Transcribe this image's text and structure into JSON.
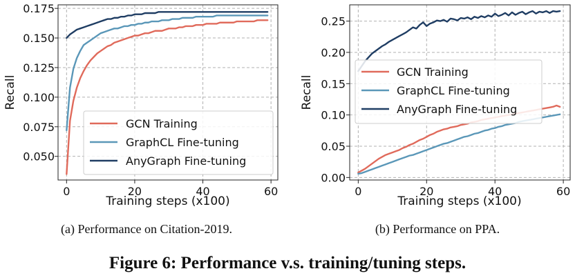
{
  "figure": {
    "caption": "Figure 6: Performance v.s. training/tuning steps.",
    "colors": {
      "gcn": "#e06a5b",
      "graphcl": "#5a97b8",
      "anygraph": "#1f3d63"
    }
  },
  "chart_data": [
    {
      "type": "line",
      "subcaption": "(a)  Performance on Citation-2019.",
      "xlabel": "Training steps (x100)",
      "ylabel": "Recall",
      "xlim": [
        -2.5,
        62
      ],
      "ylim": [
        0.03,
        0.178
      ],
      "xticks": [
        0,
        20,
        40,
        60
      ],
      "xtick_labels": [
        "0",
        "20",
        "40",
        "60"
      ],
      "yticks": [
        0.05,
        0.075,
        0.1,
        0.125,
        0.15,
        0.175
      ],
      "ytick_labels": [
        "0.050",
        "0.075",
        "0.100",
        "0.125",
        "0.150",
        "0.175"
      ],
      "grid": true,
      "legend_position": "lower-right",
      "x": [
        0,
        1,
        2,
        3,
        4,
        5,
        6,
        7,
        8,
        9,
        10,
        11,
        12,
        13,
        14,
        15,
        16,
        17,
        18,
        19,
        20,
        21,
        22,
        23,
        24,
        25,
        26,
        27,
        28,
        29,
        30,
        31,
        32,
        33,
        34,
        35,
        36,
        37,
        38,
        39,
        40,
        41,
        42,
        43,
        44,
        45,
        46,
        47,
        48,
        49,
        50,
        51,
        52,
        53,
        54,
        55,
        56,
        57,
        58,
        59
      ],
      "series": [
        {
          "name": "GCN Training",
          "key": "gcn",
          "values": [
            0.035,
            0.08,
            0.097,
            0.108,
            0.116,
            0.122,
            0.127,
            0.131,
            0.134,
            0.137,
            0.139,
            0.141,
            0.143,
            0.144,
            0.146,
            0.147,
            0.148,
            0.149,
            0.15,
            0.151,
            0.152,
            0.152,
            0.153,
            0.154,
            0.154,
            0.155,
            0.156,
            0.156,
            0.156,
            0.157,
            0.158,
            0.158,
            0.158,
            0.159,
            0.159,
            0.16,
            0.16,
            0.16,
            0.161,
            0.161,
            0.161,
            0.162,
            0.162,
            0.162,
            0.162,
            0.163,
            0.163,
            0.163,
            0.163,
            0.163,
            0.164,
            0.164,
            0.164,
            0.164,
            0.164,
            0.164,
            0.165,
            0.165,
            0.165,
            0.165
          ]
        },
        {
          "name": "GraphCL Fine-tuning",
          "key": "graphcl",
          "values": [
            0.072,
            0.108,
            0.124,
            0.133,
            0.139,
            0.144,
            0.146,
            0.148,
            0.15,
            0.152,
            0.154,
            0.155,
            0.156,
            0.157,
            0.158,
            0.158,
            0.159,
            0.16,
            0.16,
            0.161,
            0.161,
            0.162,
            0.162,
            0.163,
            0.163,
            0.164,
            0.164,
            0.164,
            0.165,
            0.165,
            0.165,
            0.166,
            0.166,
            0.166,
            0.167,
            0.167,
            0.167,
            0.167,
            0.168,
            0.168,
            0.168,
            0.168,
            0.168,
            0.168,
            0.169,
            0.169,
            0.169,
            0.169,
            0.169,
            0.169,
            0.169,
            0.169,
            0.169,
            0.169,
            0.169,
            0.169,
            0.169,
            0.169,
            0.169,
            0.169
          ]
        },
        {
          "name": "AnyGraph Fine-tuning",
          "key": "anygraph",
          "values": [
            0.15,
            0.153,
            0.155,
            0.157,
            0.158,
            0.159,
            0.16,
            0.161,
            0.162,
            0.163,
            0.164,
            0.165,
            0.166,
            0.166,
            0.167,
            0.167,
            0.168,
            0.168,
            0.169,
            0.169,
            0.17,
            0.17,
            0.17,
            0.171,
            0.171,
            0.171,
            0.171,
            0.172,
            0.172,
            0.172,
            0.172,
            0.172,
            0.172,
            0.172,
            0.172,
            0.172,
            0.172,
            0.172,
            0.172,
            0.172,
            0.172,
            0.172,
            0.172,
            0.172,
            0.172,
            0.172,
            0.172,
            0.172,
            0.172,
            0.172,
            0.172,
            0.172,
            0.172,
            0.172,
            0.172,
            0.172,
            0.172,
            0.172,
            0.172,
            0.172
          ]
        }
      ]
    },
    {
      "type": "line",
      "subcaption": "(b)  Performance on PPA.",
      "xlabel": "Training steps (x100)",
      "ylabel": "Recall",
      "xlim": [
        -2.5,
        62
      ],
      "ylim": [
        -0.004,
        0.276
      ],
      "xticks": [
        0,
        20,
        40,
        60
      ],
      "xtick_labels": [
        "0",
        "20",
        "40",
        "60"
      ],
      "yticks": [
        0,
        0.05,
        0.1,
        0.15,
        0.2,
        0.25
      ],
      "ytick_labels": [
        "0.00",
        "0.05",
        "0.10",
        "0.15",
        "0.20",
        "0.25"
      ],
      "grid": true,
      "legend_position": "center",
      "x": [
        0,
        1,
        2,
        3,
        4,
        5,
        6,
        7,
        8,
        9,
        10,
        11,
        12,
        13,
        14,
        15,
        16,
        17,
        18,
        19,
        20,
        21,
        22,
        23,
        24,
        25,
        26,
        27,
        28,
        29,
        30,
        31,
        32,
        33,
        34,
        35,
        36,
        37,
        38,
        39,
        40,
        41,
        42,
        43,
        44,
        45,
        46,
        47,
        48,
        49,
        50,
        51,
        52,
        53,
        54,
        55,
        56,
        57,
        58,
        59
      ],
      "series": [
        {
          "name": "GCN Training",
          "key": "gcn",
          "values": [
            0.008,
            0.011,
            0.014,
            0.018,
            0.022,
            0.026,
            0.03,
            0.033,
            0.036,
            0.038,
            0.04,
            0.042,
            0.044,
            0.047,
            0.049,
            0.052,
            0.054,
            0.057,
            0.06,
            0.062,
            0.065,
            0.068,
            0.07,
            0.073,
            0.075,
            0.077,
            0.078,
            0.08,
            0.081,
            0.082,
            0.084,
            0.085,
            0.086,
            0.088,
            0.089,
            0.09,
            0.092,
            0.093,
            0.094,
            0.095,
            0.096,
            0.097,
            0.098,
            0.099,
            0.1,
            0.101,
            0.102,
            0.103,
            0.104,
            0.105,
            0.106,
            0.107,
            0.108,
            0.109,
            0.11,
            0.111,
            0.112,
            0.113,
            0.115,
            0.113
          ]
        },
        {
          "name": "GraphCL Fine-tuning",
          "key": "graphcl",
          "values": [
            0.006,
            0.007,
            0.009,
            0.011,
            0.013,
            0.015,
            0.017,
            0.019,
            0.021,
            0.023,
            0.025,
            0.027,
            0.029,
            0.031,
            0.033,
            0.035,
            0.036,
            0.038,
            0.04,
            0.042,
            0.044,
            0.046,
            0.048,
            0.05,
            0.052,
            0.054,
            0.055,
            0.057,
            0.059,
            0.061,
            0.063,
            0.065,
            0.066,
            0.068,
            0.07,
            0.071,
            0.073,
            0.075,
            0.076,
            0.078,
            0.079,
            0.081,
            0.082,
            0.084,
            0.085,
            0.086,
            0.087,
            0.089,
            0.09,
            0.091,
            0.092,
            0.093,
            0.094,
            0.095,
            0.096,
            0.097,
            0.098,
            0.099,
            0.1,
            0.101
          ]
        },
        {
          "name": "AnyGraph Fine-tuning",
          "key": "anygraph",
          "values": [
            0.17,
            0.178,
            0.186,
            0.192,
            0.198,
            0.202,
            0.206,
            0.21,
            0.213,
            0.217,
            0.22,
            0.223,
            0.226,
            0.229,
            0.232,
            0.236,
            0.24,
            0.238,
            0.244,
            0.248,
            0.242,
            0.246,
            0.248,
            0.251,
            0.25,
            0.252,
            0.249,
            0.254,
            0.253,
            0.251,
            0.255,
            0.254,
            0.256,
            0.253,
            0.257,
            0.255,
            0.258,
            0.256,
            0.259,
            0.257,
            0.262,
            0.258,
            0.26,
            0.263,
            0.259,
            0.264,
            0.26,
            0.263,
            0.265,
            0.261,
            0.264,
            0.266,
            0.262,
            0.265,
            0.264,
            0.266,
            0.263,
            0.266,
            0.265,
            0.266
          ]
        }
      ]
    }
  ]
}
